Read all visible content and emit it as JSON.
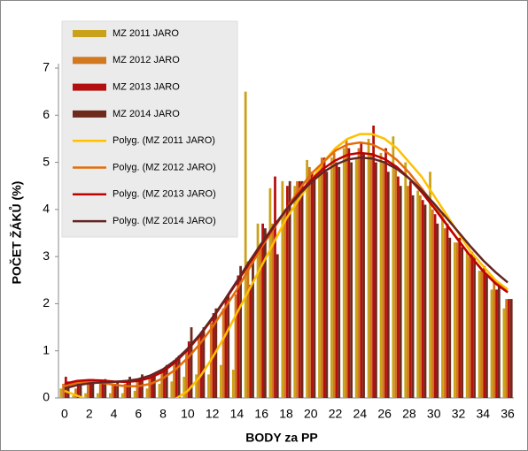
{
  "chart_data": {
    "type": "bar",
    "xlabel": "BODY za PP",
    "ylabel": "POČET ŽÁKŮ (%)",
    "categories": [
      0,
      null,
      2,
      null,
      4,
      null,
      6,
      null,
      8,
      null,
      10,
      null,
      12,
      null,
      14,
      null,
      16,
      null,
      18,
      null,
      20,
      null,
      22,
      null,
      24,
      null,
      26,
      null,
      28,
      null,
      30,
      null,
      32,
      null,
      34,
      null,
      36
    ],
    "ylim": [
      0,
      7
    ],
    "yticks": [
      0,
      1,
      2,
      3,
      4,
      5,
      6,
      7
    ],
    "series": [
      {
        "name": "MZ 2011 JARO",
        "color": "#c9a21a",
        "values": [
          0.2,
          0.05,
          0.1,
          0.1,
          0.1,
          0.1,
          0.15,
          0.2,
          0.3,
          0.35,
          0.45,
          0.5,
          0.5,
          0.7,
          0.6,
          6.5,
          3.7,
          4.45,
          4.6,
          4.5,
          5.05,
          4.9,
          5.1,
          5.3,
          5.1,
          5.5,
          5.2,
          5.55,
          5.0,
          4.4,
          4.8,
          3.9,
          3.3,
          3.1,
          2.7,
          2.3,
          1.9
        ]
      },
      {
        "name": "MZ 2012 JARO",
        "color": "#d2781e",
        "values": [
          0.3,
          0.2,
          0.3,
          0.3,
          0.3,
          0.3,
          0.35,
          0.4,
          0.6,
          0.8,
          1.0,
          1.3,
          1.6,
          1.9,
          2.2,
          2.9,
          3.2,
          3.7,
          4.0,
          4.6,
          4.9,
          5.1,
          5.2,
          5.5,
          5.3,
          5.2,
          5.0,
          4.9,
          4.5,
          4.3,
          4.0,
          3.6,
          3.3,
          3.0,
          2.7,
          2.5,
          2.1
        ]
      },
      {
        "name": "MZ 2013 JARO",
        "color": "#b40f0f",
        "values": [
          0.45,
          0.3,
          0.35,
          0.3,
          0.3,
          0.35,
          0.4,
          0.45,
          0.6,
          0.85,
          1.2,
          1.4,
          1.8,
          2.1,
          2.6,
          2.4,
          3.7,
          4.7,
          4.5,
          4.6,
          4.8,
          5.1,
          5.0,
          5.3,
          5.4,
          5.78,
          5.3,
          4.7,
          4.6,
          4.2,
          3.9,
          3.7,
          3.4,
          3.1,
          2.8,
          2.3,
          2.1
        ]
      },
      {
        "name": "MZ 2014 JARO",
        "color": "#6e2a1c",
        "values": [
          0.35,
          0.3,
          0.4,
          0.4,
          0.35,
          0.45,
          0.5,
          0.5,
          0.7,
          0.9,
          1.5,
          1.5,
          1.9,
          2.2,
          2.8,
          3.0,
          3.6,
          3.05,
          4.6,
          4.6,
          4.7,
          4.8,
          4.9,
          5.0,
          5.2,
          5.0,
          4.8,
          4.5,
          4.3,
          4.1,
          3.7,
          3.4,
          3.2,
          3.0,
          2.6,
          2.4,
          2.1
        ]
      }
    ],
    "trendlines": [
      {
        "name": "Polyg. (MZ 2011 JARO)",
        "color": "#ffc000",
        "values": [
          0.15,
          0.05,
          -0.05,
          -0.15,
          -0.2,
          -0.25,
          -0.25,
          -0.2,
          -0.1,
          -0.02,
          0.15,
          0.45,
          0.85,
          1.3,
          1.8,
          2.3,
          2.8,
          3.3,
          3.8,
          4.2,
          4.6,
          5.0,
          5.3,
          5.5,
          5.6,
          5.6,
          5.5,
          5.3,
          5.0,
          4.7,
          4.3,
          3.9,
          3.5,
          3.1,
          2.8,
          2.5,
          2.3
        ]
      },
      {
        "name": "Polyg. (MZ 2012 JARO)",
        "color": "#e46c0a",
        "values": [
          0.25,
          0.32,
          0.34,
          0.32,
          0.28,
          0.25,
          0.25,
          0.3,
          0.42,
          0.6,
          0.85,
          1.15,
          1.5,
          1.9,
          2.3,
          2.75,
          3.2,
          3.6,
          4.0,
          4.4,
          4.75,
          5.0,
          5.25,
          5.38,
          5.42,
          5.38,
          5.25,
          5.05,
          4.78,
          4.45,
          4.1,
          3.7,
          3.35,
          3.0,
          2.7,
          2.45,
          2.25
        ]
      },
      {
        "name": "Polyg. (MZ 2013 JARO)",
        "color": "#c00000",
        "values": [
          0.3,
          0.36,
          0.38,
          0.37,
          0.35,
          0.34,
          0.36,
          0.43,
          0.56,
          0.76,
          1.02,
          1.33,
          1.68,
          2.06,
          2.45,
          2.85,
          3.25,
          3.63,
          4.0,
          4.33,
          4.62,
          4.86,
          5.04,
          5.16,
          5.2,
          5.17,
          5.07,
          4.9,
          4.66,
          4.37,
          4.04,
          3.69,
          3.34,
          3.0,
          2.69,
          2.43,
          2.24
        ]
      },
      {
        "name": "Polyg. (MZ 2014 JARO)",
        "color": "#632523",
        "values": [
          0.2,
          0.27,
          0.31,
          0.33,
          0.34,
          0.36,
          0.4,
          0.48,
          0.61,
          0.8,
          1.05,
          1.35,
          1.7,
          2.08,
          2.48,
          2.89,
          3.28,
          3.65,
          3.99,
          4.3,
          4.57,
          4.79,
          4.95,
          5.06,
          5.1,
          5.08,
          5.0,
          4.86,
          4.66,
          4.41,
          4.13,
          3.83,
          3.52,
          3.21,
          2.92,
          2.67,
          2.45
        ]
      }
    ],
    "legend": "top-left"
  }
}
